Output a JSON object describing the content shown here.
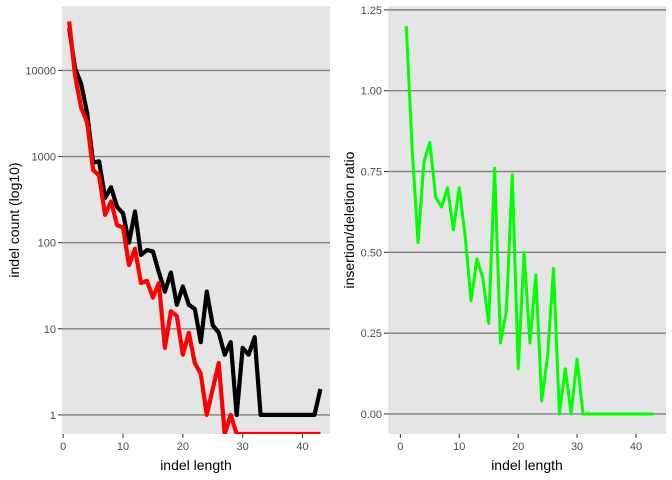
{
  "chart_data": [
    {
      "type": "line",
      "title": "",
      "xlabel": "indel length",
      "ylabel": "indel count (log10)",
      "y_scale": "log10",
      "xlim": [
        -0.2,
        44.6
      ],
      "ylim": [
        0.6,
        56000
      ],
      "grid": "horizontal",
      "legend": "none",
      "x_ticks": [
        0,
        10,
        20,
        30,
        40
      ],
      "y_ticks": [
        1,
        10,
        100,
        1000,
        10000
      ],
      "y_tick_labels": [
        "1",
        "10",
        "100",
        "1000",
        "10000"
      ],
      "series": [
        {
          "color": "#000000",
          "x": [
            1,
            2,
            3,
            4,
            5,
            6,
            7,
            8,
            9,
            10,
            11,
            12,
            13,
            14,
            15,
            16,
            17,
            18,
            19,
            20,
            21,
            22,
            23,
            24,
            25,
            26,
            27,
            28,
            29,
            30,
            31,
            32,
            33,
            34,
            35,
            36,
            37,
            38,
            39,
            40,
            41,
            42,
            43
          ],
          "y": [
            31000,
            10500,
            7000,
            3200,
            850,
            880,
            330,
            440,
            260,
            220,
            100,
            230,
            72,
            82,
            79,
            45,
            27,
            45,
            19,
            31,
            19,
            17,
            7,
            27,
            11,
            9,
            5,
            7,
            1,
            6,
            5,
            8,
            1,
            1,
            1,
            1,
            1,
            1,
            1,
            1,
            1,
            1,
            2
          ]
        },
        {
          "color": "#ff0000",
          "x": [
            1,
            2,
            3,
            4,
            5,
            6,
            7,
            8,
            9,
            10,
            11,
            12,
            13,
            14,
            15,
            16,
            17,
            18,
            19,
            20,
            21,
            22,
            23,
            24,
            25,
            26,
            27,
            28,
            29,
            30,
            31,
            32,
            33,
            34,
            35,
            36,
            37,
            38,
            39,
            40,
            41,
            42,
            43
          ],
          "y": [
            37000,
            8500,
            3700,
            2500,
            700,
            600,
            210,
            300,
            160,
            150,
            55,
            85,
            34,
            36,
            23,
            34,
            6,
            16,
            14,
            5,
            9,
            4,
            3,
            1,
            2,
            4,
            0.6,
            1,
            0.6,
            0.6,
            0.6,
            0.6,
            0.6,
            0.6,
            0.6,
            0.6,
            0.6,
            0.6,
            0.6,
            0.6,
            0.6,
            0.6,
            0.6
          ]
        }
      ]
    },
    {
      "type": "line",
      "title": "",
      "xlabel": "indel length",
      "ylabel": "insertion/deletion ratio",
      "xlim": [
        -2.1,
        45.1
      ],
      "ylim": [
        -0.062,
        1.262
      ],
      "grid": "horizontal",
      "legend": "none",
      "x_ticks": [
        0,
        10,
        20,
        30,
        40
      ],
      "y_ticks": [
        0,
        0.25,
        0.5,
        0.75,
        1,
        1.25
      ],
      "y_tick_labels": [
        "0.00",
        "0.25",
        "0.50",
        "0.75",
        "1.00",
        "1.25"
      ],
      "series": [
        {
          "color": "#00ff00",
          "x": [
            1,
            2,
            3,
            4,
            5,
            6,
            7,
            8,
            9,
            10,
            11,
            12,
            13,
            14,
            15,
            16,
            17,
            18,
            19,
            20,
            21,
            22,
            23,
            24,
            25,
            26,
            27,
            28,
            29,
            30,
            31,
            32,
            33,
            34,
            35,
            36,
            37,
            38,
            39,
            40,
            41,
            42,
            43
          ],
          "y": [
            1.2,
            0.82,
            0.53,
            0.78,
            0.84,
            0.67,
            0.64,
            0.7,
            0.57,
            0.7,
            0.55,
            0.35,
            0.48,
            0.42,
            0.28,
            0.76,
            0.22,
            0.32,
            0.74,
            0.14,
            0.5,
            0.22,
            0.43,
            0.04,
            0.18,
            0.45,
            0,
            0.14,
            0,
            0.17,
            0,
            0,
            0,
            0,
            0,
            0,
            0,
            0,
            0,
            0,
            0,
            0,
            0
          ]
        }
      ]
    }
  ]
}
